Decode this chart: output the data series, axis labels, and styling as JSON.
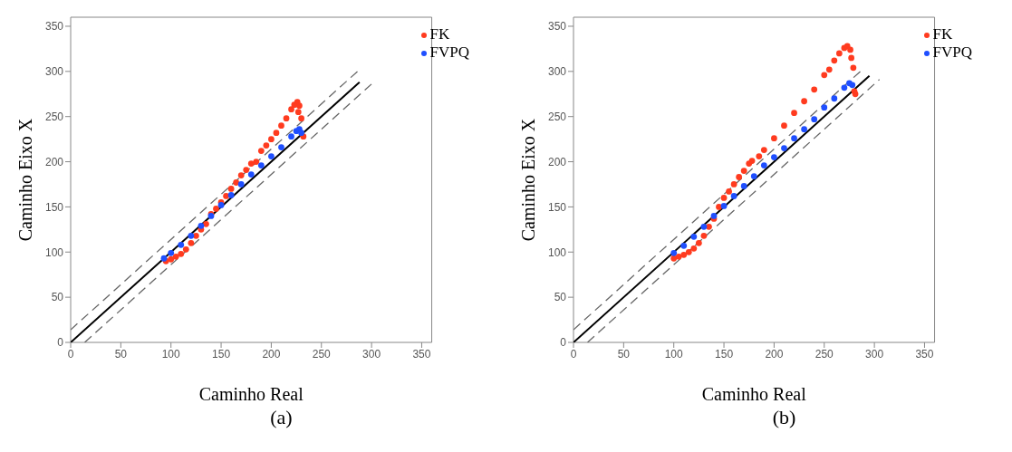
{
  "chart_data": [
    {
      "type": "scatter",
      "xlabel": "Caminho Real",
      "ylabel": "Caminho Eixo X",
      "annotations": [
        "(a)"
      ],
      "xlim": [
        0,
        360
      ],
      "ylim": [
        0,
        360
      ],
      "xticks": [
        0,
        50,
        100,
        150,
        200,
        250,
        300,
        350
      ],
      "yticks": [
        0,
        50,
        100,
        150,
        200,
        250,
        300,
        350
      ],
      "grid": false,
      "legend": "top right",
      "marker": "circle",
      "series": [
        {
          "name": "FK",
          "color": "#ff3b1f",
          "x": [
            95,
            100,
            105,
            110,
            115,
            120,
            125,
            130,
            135,
            140,
            145,
            150,
            155,
            160,
            165,
            170,
            175,
            180,
            185,
            190,
            195,
            200,
            205,
            210,
            215,
            220,
            223,
            226,
            228,
            227,
            230,
            232
          ],
          "values": [
            90,
            92,
            95,
            98,
            103,
            110,
            118,
            125,
            131,
            142,
            148,
            155,
            162,
            170,
            177,
            185,
            191,
            198,
            200,
            212,
            218,
            225,
            232,
            240,
            248,
            258,
            263,
            266,
            262,
            255,
            248,
            228
          ]
        },
        {
          "name": "FVPQ",
          "color": "#1f4fff",
          "x": [
            93,
            100,
            110,
            120,
            130,
            140,
            150,
            160,
            170,
            180,
            190,
            200,
            210,
            220,
            225,
            228,
            230
          ],
          "values": [
            93,
            99,
            108,
            118,
            129,
            140,
            152,
            163,
            175,
            186,
            196,
            206,
            216,
            228,
            234,
            236,
            232
          ]
        },
        {
          "type": "line",
          "color": "#000000",
          "x": [
            0,
            288
          ],
          "values": [
            0,
            288
          ],
          "marker": "none",
          "line_style": "solid"
        },
        {
          "type": "line",
          "color": "#666666",
          "x": [
            0,
            286
          ],
          "values": [
            14,
            300
          ],
          "marker": "none",
          "line_style": "dashed"
        },
        {
          "type": "line",
          "color": "#666666",
          "x": [
            14,
            300
          ],
          "values": [
            0,
            286
          ],
          "marker": "none",
          "line_style": "dashed"
        }
      ]
    },
    {
      "type": "scatter",
      "xlabel": "Caminho Real",
      "ylabel": "Caminho Eixo X",
      "annotations": [
        "(b)"
      ],
      "xlim": [
        0,
        360
      ],
      "ylim": [
        0,
        360
      ],
      "xticks": [
        0,
        50,
        100,
        150,
        200,
        250,
        300,
        350
      ],
      "yticks": [
        0,
        50,
        100,
        150,
        200,
        250,
        300,
        350
      ],
      "grid": false,
      "legend": "top right",
      "marker": "circle",
      "series": [
        {
          "name": "FK",
          "color": "#ff3b1f",
          "x": [
            100,
            105,
            110,
            115,
            120,
            125,
            130,
            135,
            140,
            145,
            150,
            155,
            160,
            165,
            170,
            175,
            178,
            185,
            190,
            200,
            210,
            220,
            230,
            240,
            250,
            255,
            260,
            265,
            270,
            273,
            276,
            277,
            279,
            280,
            281
          ],
          "values": [
            93,
            95,
            97,
            100,
            104,
            110,
            118,
            128,
            137,
            150,
            160,
            167,
            175,
            183,
            190,
            198,
            201,
            206,
            213,
            226,
            240,
            254,
            267,
            280,
            296,
            302,
            312,
            320,
            326,
            328,
            324,
            315,
            304,
            278,
            275
          ]
        },
        {
          "name": "FVPQ",
          "color": "#1f4fff",
          "x": [
            100,
            110,
            120,
            130,
            140,
            150,
            160,
            170,
            180,
            190,
            200,
            210,
            220,
            230,
            240,
            250,
            260,
            270,
            275,
            278
          ],
          "values": [
            99,
            107,
            117,
            128,
            140,
            151,
            162,
            173,
            184,
            196,
            205,
            215,
            226,
            236,
            247,
            260,
            270,
            282,
            287,
            285
          ]
        },
        {
          "type": "line",
          "color": "#000000",
          "x": [
            0,
            295
          ],
          "values": [
            0,
            295
          ],
          "marker": "none",
          "line_style": "solid"
        },
        {
          "type": "line",
          "color": "#666666",
          "x": [
            0,
            286
          ],
          "values": [
            14,
            300
          ],
          "marker": "none",
          "line_style": "dashed"
        },
        {
          "type": "line",
          "color": "#666666",
          "x": [
            14,
            305
          ],
          "values": [
            0,
            291
          ],
          "marker": "none",
          "line_style": "dashed"
        }
      ]
    }
  ]
}
